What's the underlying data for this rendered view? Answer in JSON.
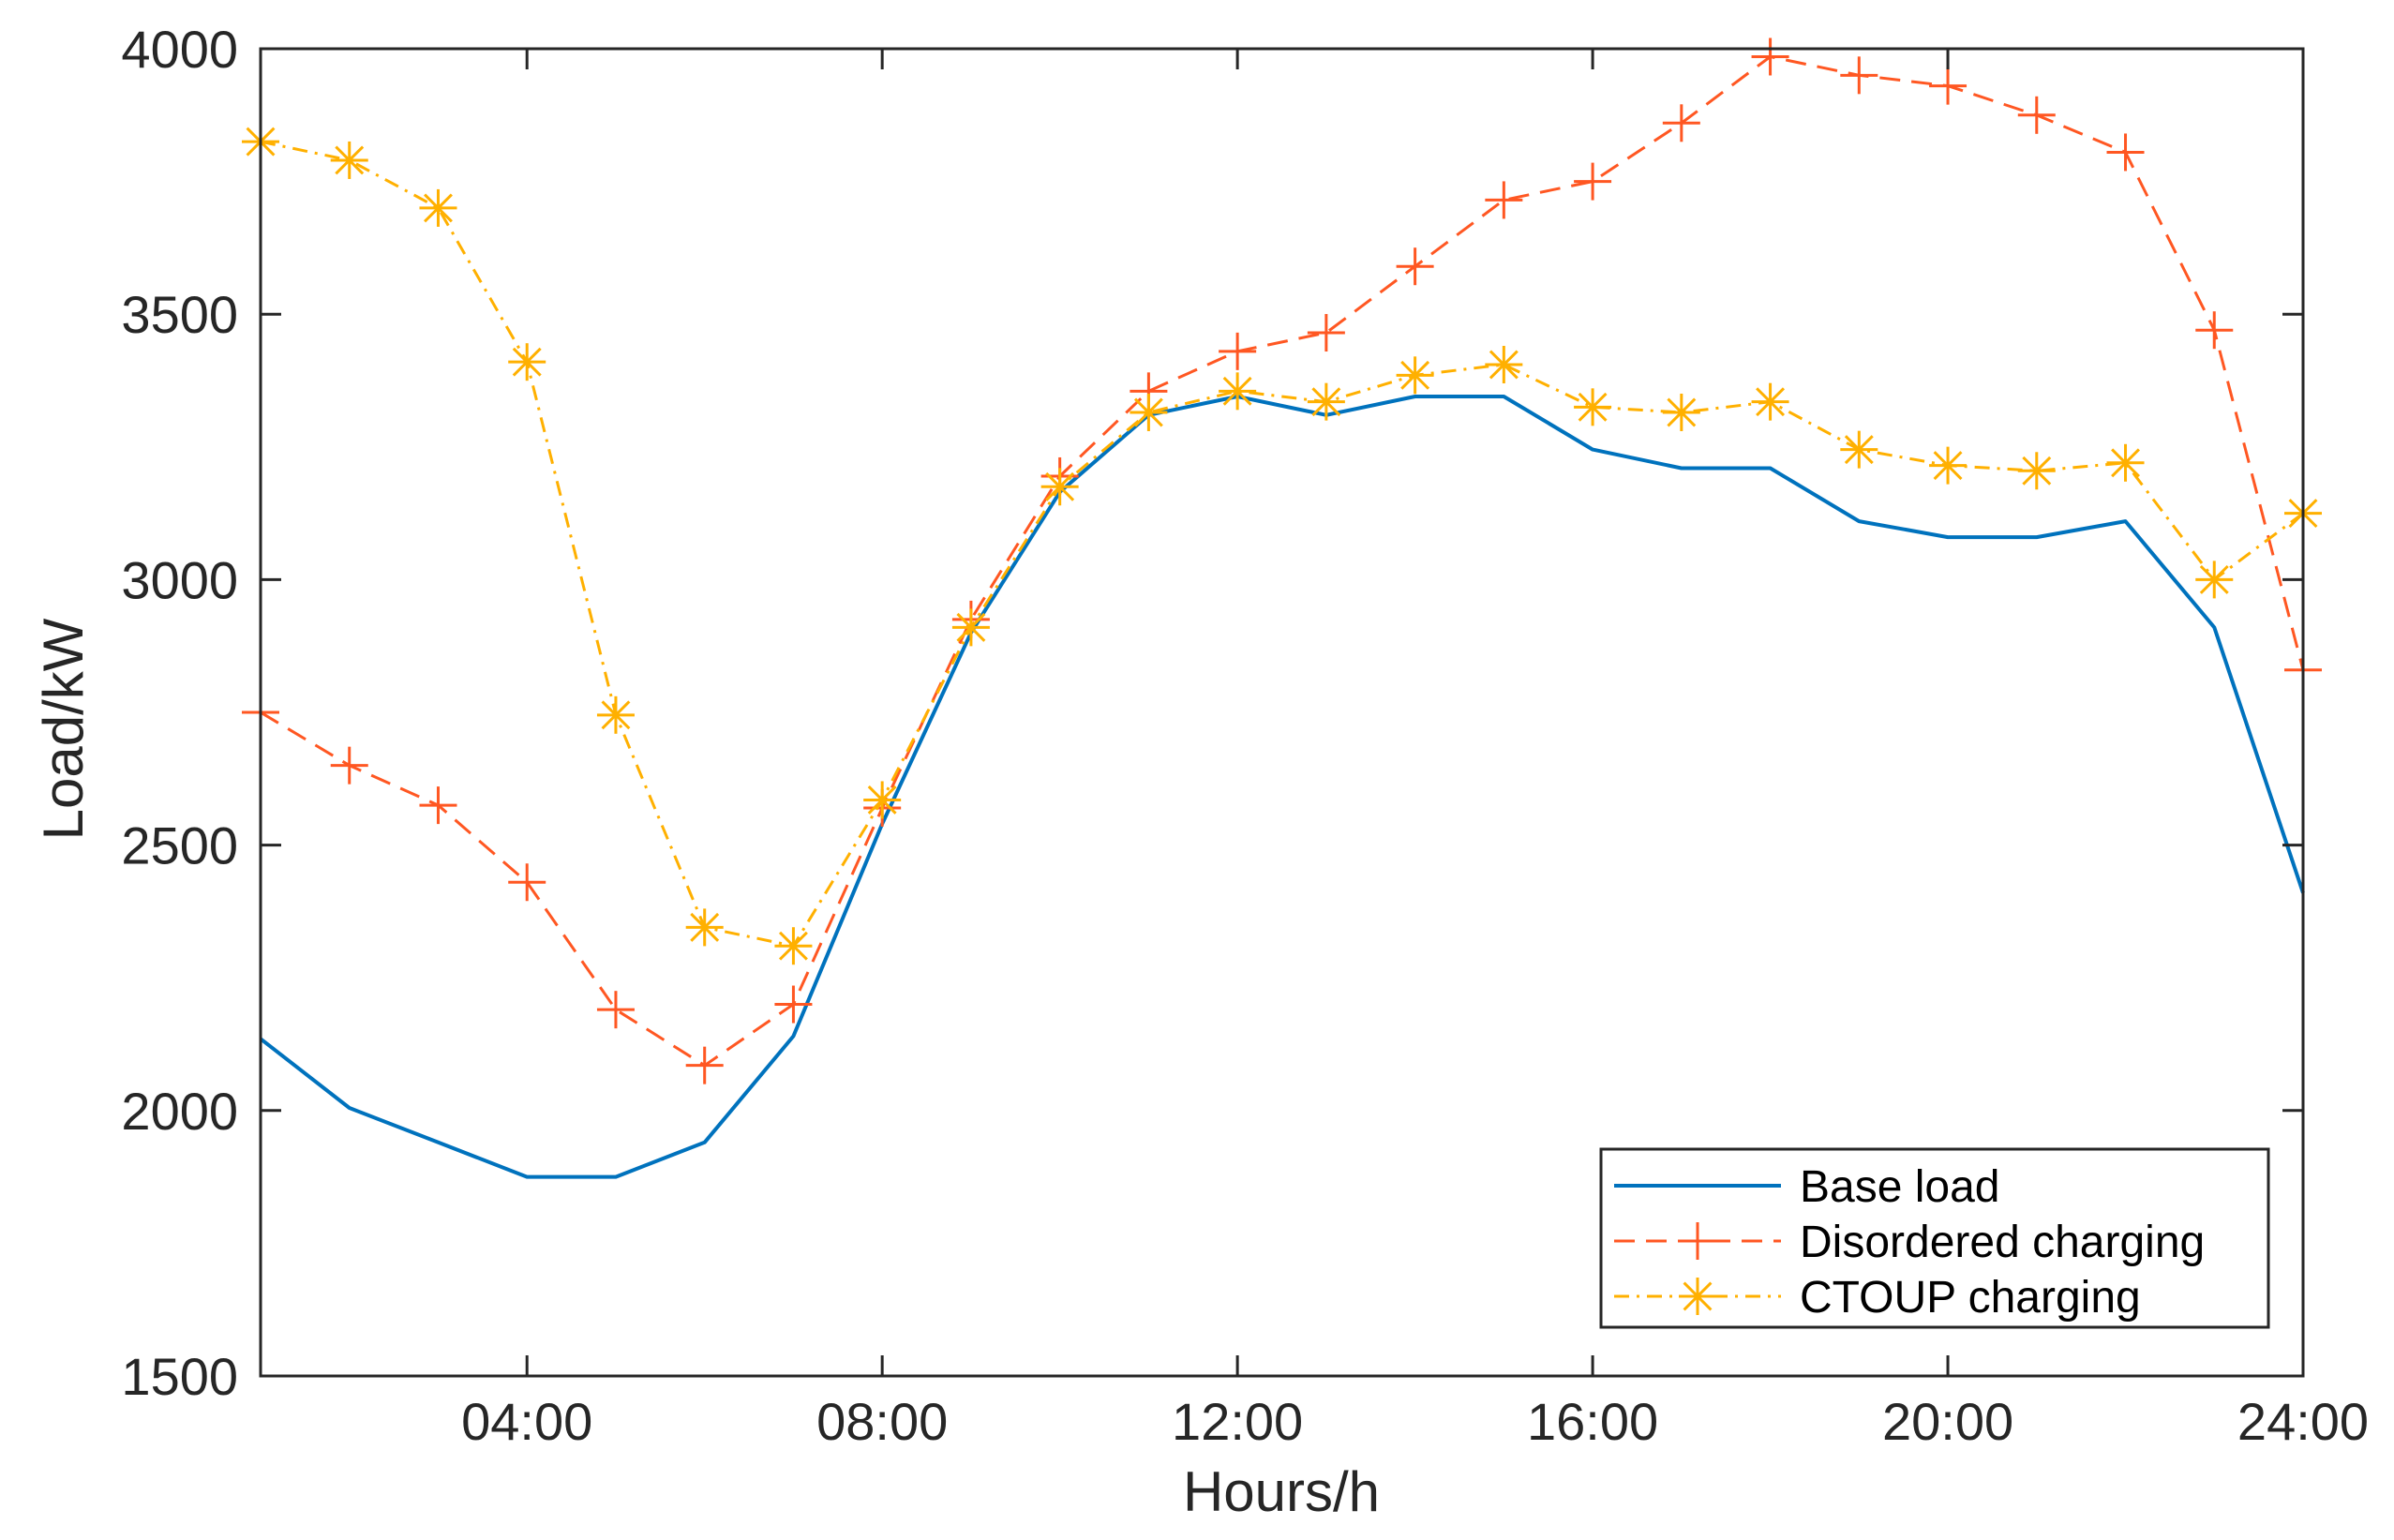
{
  "chart_data": {
    "type": "line",
    "title": "",
    "xlabel": "Hours/h",
    "ylabel": "Load/kW",
    "xlim": [
      1,
      24
    ],
    "ylim": [
      1500,
      4000
    ],
    "x": [
      1,
      2,
      3,
      4,
      5,
      6,
      7,
      8,
      9,
      10,
      11,
      12,
      13,
      14,
      15,
      16,
      17,
      18,
      19,
      20,
      21,
      22,
      23,
      24
    ],
    "x_ticks": [
      4,
      8,
      12,
      16,
      20,
      24
    ],
    "x_tick_labels": [
      "04:00",
      "08:00",
      "12:00",
      "16:00",
      "20:00",
      "24:00"
    ],
    "y_ticks": [
      1500,
      2000,
      2500,
      3000,
      3500,
      4000
    ],
    "y_tick_labels": [
      "1500",
      "2000",
      "2500",
      "3000",
      "3500",
      "4000"
    ],
    "grid": false,
    "legend_position": "bottom-right",
    "series": [
      {
        "name": "Base load",
        "color": "#0072BD",
        "line_style": "solid",
        "marker": "none",
        "values": [
          2135,
          2005,
          1940,
          1875,
          1875,
          1940,
          2140,
          2540,
          2900,
          3165,
          3310,
          3345,
          3310,
          3345,
          3345,
          3245,
          3210,
          3210,
          3110,
          3080,
          3080,
          3110,
          2910,
          2410
        ]
      },
      {
        "name": "Disordered charging",
        "color": "#FF5722",
        "line_style": "dashed",
        "marker": "plus",
        "values": [
          2750,
          2650,
          2575,
          2430,
          2190,
          2085,
          2200,
          2570,
          2925,
          3195,
          3355,
          3430,
          3465,
          3590,
          3715,
          3750,
          3860,
          3985,
          3950,
          3930,
          3875,
          3805,
          3470,
          2830
        ]
      },
      {
        "name": "CTOUP charging",
        "color": "#FFB000",
        "line_style": "dashdot",
        "marker": "asterisk",
        "values": [
          3825,
          3790,
          3700,
          3410,
          2745,
          2345,
          2310,
          2585,
          2910,
          3175,
          3315,
          3355,
          3335,
          3385,
          3405,
          3325,
          3315,
          3335,
          3245,
          3215,
          3205,
          3220,
          3000,
          3125
        ]
      }
    ]
  }
}
